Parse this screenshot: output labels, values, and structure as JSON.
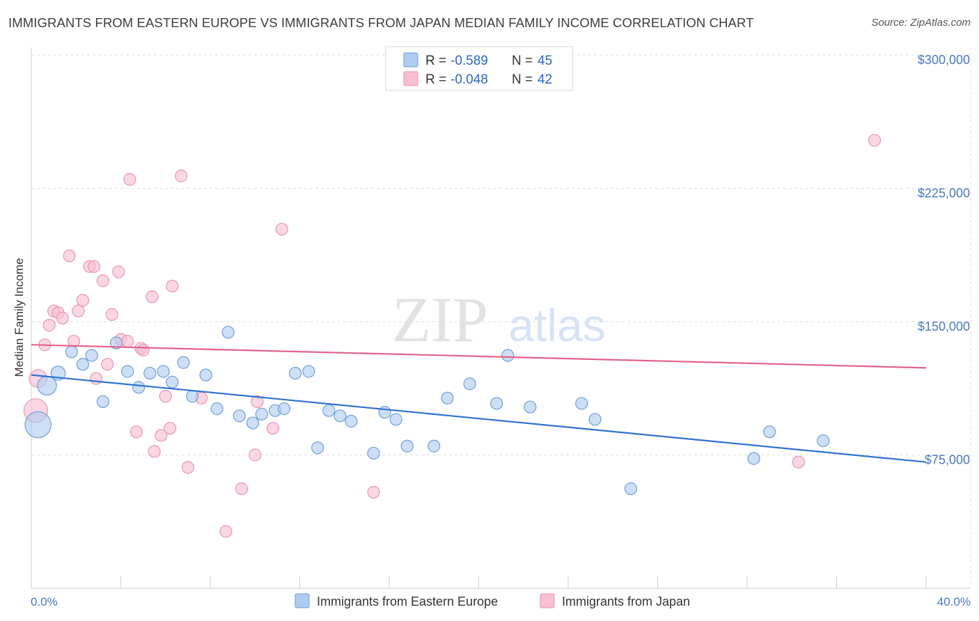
{
  "title": "IMMIGRANTS FROM EASTERN EUROPE VS IMMIGRANTS FROM JAPAN MEDIAN FAMILY INCOME CORRELATION CHART",
  "source": "Source: ZipAtlas.com",
  "watermark": {
    "zip": "ZIP",
    "atlas": "atlas"
  },
  "colors": {
    "blue_fill": "#aecbf0",
    "blue_stroke": "#6f9fd8",
    "blue_line": "#2f72d0",
    "pink_fill": "#f7bfd0",
    "pink_stroke": "#e996b0",
    "pink_line": "#e2628a",
    "tick_label": "#4a78c2",
    "grid": "#dddddd"
  },
  "legend": {
    "rows": [
      {
        "r_label": "R = ",
        "r_value": "-0.589",
        "n_label": "N = ",
        "n_value": "45"
      },
      {
        "r_label": "R = ",
        "r_value": "-0.048",
        "n_label": "N = ",
        "n_value": "42"
      }
    ]
  },
  "chart_data": {
    "type": "scatter",
    "title": "IMMIGRANTS FROM EASTERN EUROPE VS IMMIGRANTS FROM JAPAN MEDIAN FAMILY INCOME CORRELATION CHART",
    "xlabel": "",
    "ylabel": "Median Family Income",
    "xlim": [
      0,
      40
    ],
    "ylim": [
      0,
      308000
    ],
    "x_tick_labels": [
      "0.0%",
      "40.0%"
    ],
    "y_ticks": [
      75000,
      150000,
      225000,
      300000
    ],
    "y_tick_labels": [
      "$75,000",
      "$150,000",
      "$225,000",
      "$300,000"
    ],
    "grid": true,
    "legend_position": "top-center",
    "series": [
      {
        "name": "Immigrants from Eastern Europe",
        "color": "#aecbf0",
        "trend": {
          "x": [
            0,
            40
          ],
          "y": [
            120000,
            71000
          ]
        },
        "points": [
          {
            "x": 0.3,
            "y": 92000,
            "s": 2.2
          },
          {
            "x": 0.7,
            "y": 114000,
            "s": 1.6
          },
          {
            "x": 1.2,
            "y": 121000,
            "s": 1.2
          },
          {
            "x": 1.8,
            "y": 133000,
            "s": 1
          },
          {
            "x": 2.3,
            "y": 126000,
            "s": 1
          },
          {
            "x": 2.7,
            "y": 131000,
            "s": 1
          },
          {
            "x": 3.2,
            "y": 105000,
            "s": 1
          },
          {
            "x": 3.8,
            "y": 138000,
            "s": 1
          },
          {
            "x": 4.3,
            "y": 122000,
            "s": 1
          },
          {
            "x": 4.8,
            "y": 113000,
            "s": 1
          },
          {
            "x": 5.3,
            "y": 121000,
            "s": 1
          },
          {
            "x": 5.9,
            "y": 122000,
            "s": 1
          },
          {
            "x": 6.3,
            "y": 116000,
            "s": 1
          },
          {
            "x": 6.8,
            "y": 127000,
            "s": 1
          },
          {
            "x": 7.2,
            "y": 108000,
            "s": 1
          },
          {
            "x": 7.8,
            "y": 120000,
            "s": 1
          },
          {
            "x": 8.3,
            "y": 101000,
            "s": 1
          },
          {
            "x": 8.8,
            "y": 144000,
            "s": 1
          },
          {
            "x": 9.3,
            "y": 97000,
            "s": 1
          },
          {
            "x": 9.9,
            "y": 93000,
            "s": 1
          },
          {
            "x": 10.3,
            "y": 98000,
            "s": 1
          },
          {
            "x": 10.9,
            "y": 100000,
            "s": 1
          },
          {
            "x": 11.3,
            "y": 101000,
            "s": 1
          },
          {
            "x": 11.8,
            "y": 121000,
            "s": 1
          },
          {
            "x": 12.4,
            "y": 122000,
            "s": 1
          },
          {
            "x": 12.8,
            "y": 79000,
            "s": 1
          },
          {
            "x": 13.3,
            "y": 100000,
            "s": 1
          },
          {
            "x": 13.8,
            "y": 97000,
            "s": 1
          },
          {
            "x": 14.3,
            "y": 94000,
            "s": 1
          },
          {
            "x": 15.3,
            "y": 76000,
            "s": 1
          },
          {
            "x": 15.8,
            "y": 99000,
            "s": 1
          },
          {
            "x": 16.3,
            "y": 95000,
            "s": 1
          },
          {
            "x": 16.8,
            "y": 80000,
            "s": 1
          },
          {
            "x": 18.0,
            "y": 80000,
            "s": 1
          },
          {
            "x": 18.6,
            "y": 107000,
            "s": 1
          },
          {
            "x": 19.6,
            "y": 115000,
            "s": 1
          },
          {
            "x": 20.8,
            "y": 104000,
            "s": 1
          },
          {
            "x": 21.3,
            "y": 131000,
            "s": 1
          },
          {
            "x": 22.3,
            "y": 102000,
            "s": 1
          },
          {
            "x": 24.6,
            "y": 104000,
            "s": 1
          },
          {
            "x": 25.2,
            "y": 95000,
            "s": 1
          },
          {
            "x": 26.8,
            "y": 56000,
            "s": 1
          },
          {
            "x": 32.3,
            "y": 73000,
            "s": 1
          },
          {
            "x": 33.0,
            "y": 88000,
            "s": 1
          },
          {
            "x": 35.4,
            "y": 83000,
            "s": 1
          }
        ]
      },
      {
        "name": "Immigrants from Japan",
        "color": "#f7bfd0",
        "trend": {
          "x": [
            0,
            40
          ],
          "y": [
            137000,
            124000
          ]
        },
        "points": [
          {
            "x": 0.2,
            "y": 100000,
            "s": 2
          },
          {
            "x": 0.3,
            "y": 118000,
            "s": 1.5
          },
          {
            "x": 0.6,
            "y": 137000,
            "s": 1
          },
          {
            "x": 0.8,
            "y": 148000,
            "s": 1
          },
          {
            "x": 1.0,
            "y": 156000,
            "s": 1
          },
          {
            "x": 1.2,
            "y": 155000,
            "s": 1
          },
          {
            "x": 1.4,
            "y": 152000,
            "s": 1
          },
          {
            "x": 1.7,
            "y": 187000,
            "s": 1
          },
          {
            "x": 1.9,
            "y": 139000,
            "s": 1
          },
          {
            "x": 2.1,
            "y": 156000,
            "s": 1
          },
          {
            "x": 2.3,
            "y": 162000,
            "s": 1
          },
          {
            "x": 2.6,
            "y": 181000,
            "s": 1
          },
          {
            "x": 2.8,
            "y": 181000,
            "s": 1
          },
          {
            "x": 2.9,
            "y": 118000,
            "s": 1
          },
          {
            "x": 3.2,
            "y": 173000,
            "s": 1
          },
          {
            "x": 3.4,
            "y": 126000,
            "s": 1
          },
          {
            "x": 3.6,
            "y": 154000,
            "s": 1
          },
          {
            "x": 3.9,
            "y": 178000,
            "s": 1
          },
          {
            "x": 4.0,
            "y": 140000,
            "s": 1
          },
          {
            "x": 4.3,
            "y": 139000,
            "s": 1
          },
          {
            "x": 4.4,
            "y": 230000,
            "s": 1
          },
          {
            "x": 4.7,
            "y": 88000,
            "s": 1
          },
          {
            "x": 4.9,
            "y": 135000,
            "s": 1
          },
          {
            "x": 5.0,
            "y": 134000,
            "s": 1
          },
          {
            "x": 5.4,
            "y": 164000,
            "s": 1
          },
          {
            "x": 5.5,
            "y": 77000,
            "s": 1
          },
          {
            "x": 5.8,
            "y": 86000,
            "s": 1
          },
          {
            "x": 6.0,
            "y": 108000,
            "s": 1
          },
          {
            "x": 6.2,
            "y": 90000,
            "s": 1
          },
          {
            "x": 6.3,
            "y": 170000,
            "s": 1
          },
          {
            "x": 6.7,
            "y": 232000,
            "s": 1
          },
          {
            "x": 7.0,
            "y": 68000,
            "s": 1
          },
          {
            "x": 7.6,
            "y": 107000,
            "s": 1
          },
          {
            "x": 8.7,
            "y": 32000,
            "s": 1
          },
          {
            "x": 9.4,
            "y": 56000,
            "s": 1
          },
          {
            "x": 10.0,
            "y": 75000,
            "s": 1
          },
          {
            "x": 10.1,
            "y": 105000,
            "s": 1
          },
          {
            "x": 10.8,
            "y": 90000,
            "s": 1
          },
          {
            "x": 11.2,
            "y": 202000,
            "s": 1
          },
          {
            "x": 15.3,
            "y": 54000,
            "s": 1
          },
          {
            "x": 34.3,
            "y": 71000,
            "s": 1
          },
          {
            "x": 37.7,
            "y": 252000,
            "s": 1
          }
        ]
      }
    ]
  }
}
